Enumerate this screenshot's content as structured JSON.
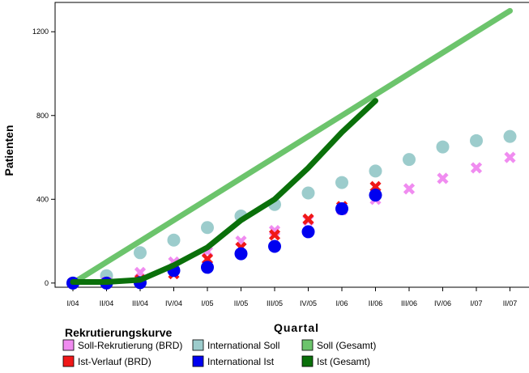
{
  "chart_data": {
    "type": "line",
    "xlabel": "Quartal",
    "ylabel": "Patienten",
    "ylim": [
      -20,
      1340
    ],
    "yticks": [
      0,
      400,
      800,
      1200
    ],
    "categories": [
      "I/04",
      "II/04",
      "III/04",
      "IV/04",
      "I/05",
      "II/05",
      "III/05",
      "IV/05",
      "I/06",
      "II/06",
      "III/06",
      "IV/06",
      "I/07",
      "II/07"
    ],
    "grid": false,
    "legend": {
      "title": "Rekrutierungskurve",
      "placement": "bottom-left"
    },
    "series": [
      {
        "name": "Soll-Rekrutierung (BRD)",
        "kind": "marker-x",
        "color": "#f08cf0",
        "values": [
          0,
          5,
          50,
          100,
          150,
          200,
          250,
          300,
          350,
          400,
          450,
          500,
          550,
          600
        ]
      },
      {
        "name": "International Soll",
        "kind": "marker-dot",
        "color": "#9ccccc",
        "values": [
          0,
          35,
          145,
          205,
          265,
          320,
          375,
          430,
          480,
          535,
          590,
          650,
          680,
          700
        ]
      },
      {
        "name": "Soll (Gesamt)",
        "kind": "line",
        "color": "#6cc46c",
        "values": [
          0,
          100,
          200,
          300,
          400,
          500,
          600,
          700,
          800,
          900,
          1000,
          1100,
          1200,
          1300
        ]
      },
      {
        "name": "Ist-Verlauf (BRD)",
        "kind": "marker-x",
        "color": "#f01818",
        "values": [
          0,
          0,
          15,
          45,
          115,
          170,
          230,
          305,
          365,
          460,
          null,
          null,
          null,
          null
        ]
      },
      {
        "name": "International Ist",
        "kind": "marker-dot",
        "color": "#0000f0",
        "values": [
          0,
          0,
          2,
          60,
          75,
          140,
          175,
          245,
          355,
          420,
          null,
          null,
          null,
          null
        ]
      },
      {
        "name": "Ist (Gesamt)",
        "kind": "line",
        "color": "#0a700a",
        "values": [
          5,
          5,
          15,
          85,
          170,
          300,
          400,
          550,
          720,
          870,
          null,
          null,
          null,
          null
        ]
      }
    ]
  }
}
